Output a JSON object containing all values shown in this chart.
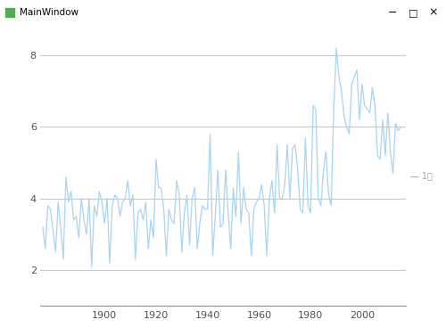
{
  "title": "MainWindow",
  "legend_label": "― 1月",
  "line_color": "#a8d4f0",
  "background_color": "#ffffff",
  "grid_color": "#c8c8c8",
  "yticks": [
    2,
    4,
    6,
    8
  ],
  "xticks": [
    1900,
    1920,
    1940,
    1960,
    1980,
    2000
  ],
  "xlim": [
    1875,
    2017
  ],
  "ylim": [
    1.0,
    8.8
  ],
  "years": [
    1876,
    1877,
    1878,
    1879,
    1880,
    1881,
    1882,
    1883,
    1884,
    1885,
    1886,
    1887,
    1888,
    1889,
    1890,
    1891,
    1892,
    1893,
    1894,
    1895,
    1896,
    1897,
    1898,
    1899,
    1900,
    1901,
    1902,
    1903,
    1904,
    1905,
    1906,
    1907,
    1908,
    1909,
    1910,
    1911,
    1912,
    1913,
    1914,
    1915,
    1916,
    1917,
    1918,
    1919,
    1920,
    1921,
    1922,
    1923,
    1924,
    1925,
    1926,
    1927,
    1928,
    1929,
    1930,
    1931,
    1932,
    1933,
    1934,
    1935,
    1936,
    1937,
    1938,
    1939,
    1940,
    1941,
    1942,
    1943,
    1944,
    1945,
    1946,
    1947,
    1948,
    1949,
    1950,
    1951,
    1952,
    1953,
    1954,
    1955,
    1956,
    1957,
    1958,
    1959,
    1960,
    1961,
    1962,
    1963,
    1964,
    1965,
    1966,
    1967,
    1968,
    1969,
    1970,
    1971,
    1972,
    1973,
    1974,
    1975,
    1976,
    1977,
    1978,
    1979,
    1980,
    1981,
    1982,
    1983,
    1984,
    1985,
    1986,
    1987,
    1988,
    1989,
    1990,
    1991,
    1992,
    1993,
    1994,
    1995,
    1996,
    1997,
    1998,
    1999,
    2000,
    2001,
    2002,
    2003,
    2004,
    2005,
    2006,
    2007,
    2008,
    2009,
    2010,
    2011,
    2012,
    2013,
    2014,
    2015
  ],
  "temps": [
    3.2,
    2.6,
    3.8,
    3.7,
    3.1,
    2.5,
    3.9,
    3.2,
    2.3,
    4.6,
    3.9,
    4.2,
    3.4,
    3.5,
    2.9,
    4.0,
    3.4,
    3.0,
    4.0,
    2.1,
    3.8,
    3.5,
    4.2,
    3.9,
    3.3,
    4.0,
    2.2,
    3.8,
    4.1,
    4.0,
    3.5,
    3.9,
    4.0,
    4.5,
    3.8,
    4.1,
    2.3,
    3.6,
    3.7,
    3.4,
    3.9,
    2.6,
    3.4,
    2.9,
    5.1,
    4.3,
    4.3,
    3.7,
    2.4,
    3.7,
    3.4,
    3.3,
    4.5,
    4.1,
    2.5,
    3.6,
    4.1,
    2.7,
    4.0,
    4.3,
    2.6,
    3.3,
    3.8,
    3.7,
    3.7,
    5.8,
    2.4,
    3.5,
    4.8,
    3.2,
    3.3,
    4.8,
    3.6,
    2.6,
    4.3,
    3.5,
    5.3,
    3.3,
    4.3,
    3.7,
    3.6,
    2.4,
    3.7,
    3.9,
    4.0,
    4.4,
    3.8,
    2.4,
    4.0,
    4.5,
    3.6,
    5.5,
    4.0,
    4.0,
    4.4,
    5.5,
    4.0,
    5.4,
    5.5,
    4.8,
    3.7,
    3.6,
    5.7,
    3.8,
    3.6,
    6.6,
    6.5,
    4.0,
    3.8,
    4.8,
    5.3,
    4.1,
    3.8,
    6.5,
    8.2,
    7.4,
    7.0,
    6.3,
    6.0,
    5.8,
    7.2,
    7.4,
    7.6,
    6.2,
    7.2,
    6.6,
    6.5,
    6.4,
    7.1,
    6.6,
    5.2,
    5.1,
    6.2,
    5.2,
    6.4,
    5.3,
    4.7,
    6.1,
    5.9,
    6.0
  ]
}
